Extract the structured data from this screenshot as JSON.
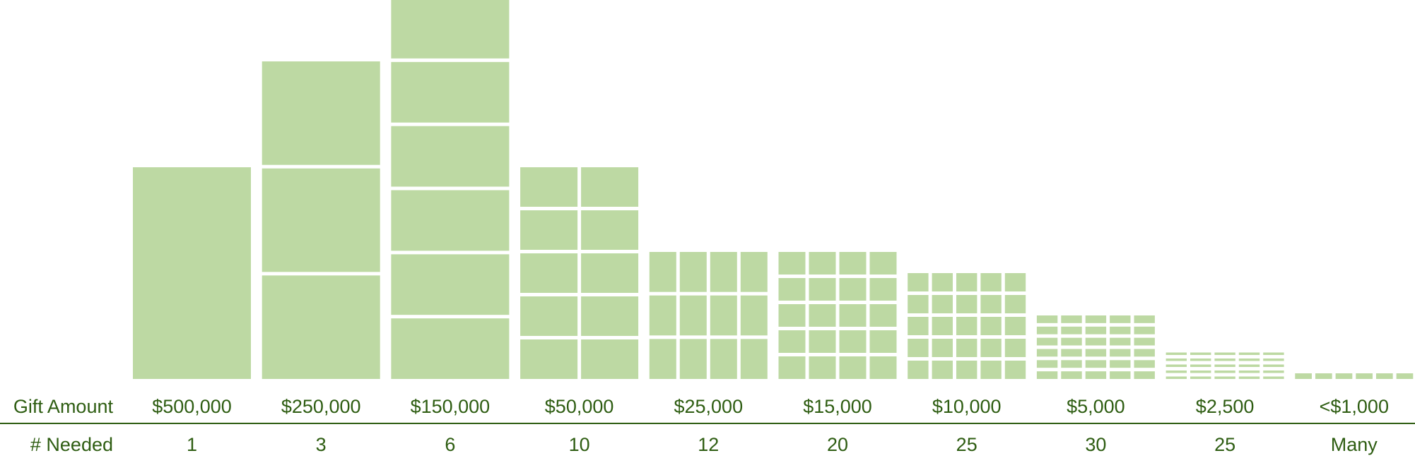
{
  "colors": {
    "cell": "#bdd9a3",
    "text": "#2e5d12",
    "line": "#2e5d12"
  },
  "chart_data": {
    "type": "bar",
    "row_labels": {
      "amount": "Gift Amount",
      "needed": "# Needed"
    },
    "categories": [
      "$500,000",
      "$250,000",
      "$150,000",
      "$50,000",
      "$25,000",
      "$15,000",
      "$10,000",
      "$5,000",
      "$2,500",
      "<$1,000"
    ],
    "needed_labels": [
      "1",
      "3",
      "6",
      "10",
      "12",
      "20",
      "25",
      "30",
      "25",
      "Many"
    ],
    "needed": [
      1,
      3,
      6,
      10,
      12,
      20,
      25,
      30,
      25,
      null
    ],
    "grid": [
      {
        "cols": 1,
        "rows": 1
      },
      {
        "cols": 1,
        "rows": 3
      },
      {
        "cols": 1,
        "rows": 6
      },
      {
        "cols": 2,
        "rows": 5
      },
      {
        "cols": 4,
        "rows": 3
      },
      {
        "cols": 4,
        "rows": 5
      },
      {
        "cols": 5,
        "rows": 5
      },
      {
        "cols": 5,
        "rows": 6
      },
      {
        "cols": 5,
        "rows": 5
      },
      {
        "cols": 6,
        "rows": 1
      }
    ],
    "values": [
      500000,
      750000,
      900000,
      500000,
      300000,
      300000,
      250000,
      150000,
      62500,
      null
    ]
  }
}
